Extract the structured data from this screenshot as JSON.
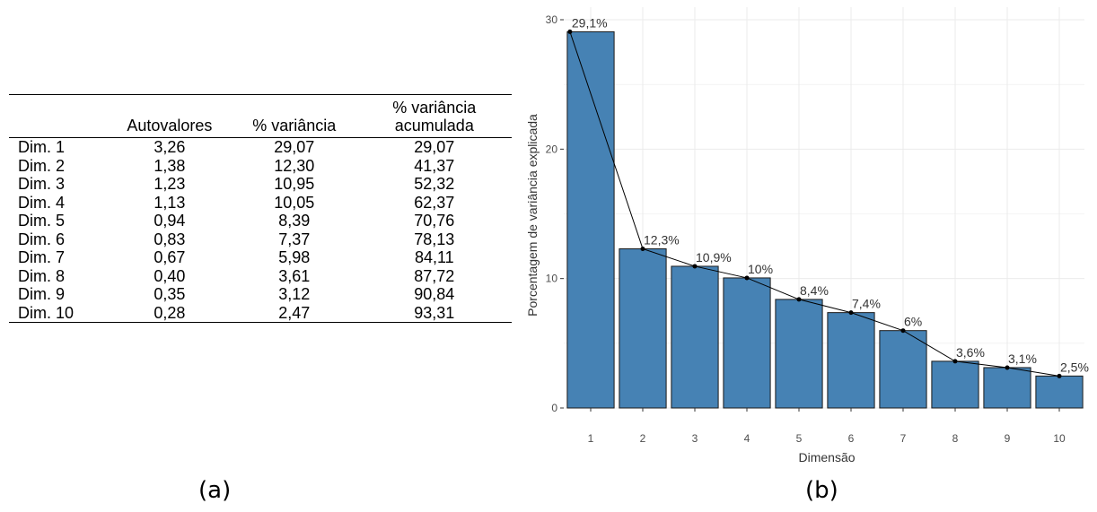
{
  "panel_a": {
    "label": "(a)",
    "table": {
      "headers": [
        "",
        "Autovalores",
        "% variância",
        "% variância acumulada"
      ],
      "header_cum_line1": "% variância",
      "header_cum_line2": "acumulada",
      "rows": [
        [
          "Dim. 1",
          "3,26",
          "29,07",
          "29,07"
        ],
        [
          "Dim. 2",
          "1,38",
          "12,30",
          "41,37"
        ],
        [
          "Dim. 3",
          "1,23",
          "10,95",
          "52,32"
        ],
        [
          "Dim. 4",
          "1,13",
          "10,05",
          "62,37"
        ],
        [
          "Dim. 5",
          "0,94",
          "8,39",
          "70,76"
        ],
        [
          "Dim. 6",
          "0,83",
          "7,37",
          "78,13"
        ],
        [
          "Dim. 7",
          "0,67",
          "5,98",
          "84,11"
        ],
        [
          "Dim. 8",
          "0,40",
          "3,61",
          "87,72"
        ],
        [
          "Dim. 9",
          "0,35",
          "3,12",
          "90,84"
        ],
        [
          "Dim. 10",
          "0,28",
          "2,47",
          "93,31"
        ]
      ]
    }
  },
  "panel_b": {
    "label": "(b)"
  },
  "chart_data": {
    "type": "bar",
    "categories": [
      "1",
      "2",
      "3",
      "4",
      "5",
      "6",
      "7",
      "8",
      "9",
      "10"
    ],
    "values": [
      29.07,
      12.3,
      10.95,
      10.05,
      8.39,
      7.37,
      5.98,
      3.61,
      3.12,
      2.47
    ],
    "data_labels": [
      "29,1%",
      "12,3%",
      "10,9%",
      "10%",
      "8,4%",
      "7,4%",
      "6%",
      "3,6%",
      "3,1%",
      "2,5%"
    ],
    "line_overlay": true,
    "xlabel": "Dimensão",
    "ylabel": "Porcentagem de variância explicada",
    "ylim": [
      0,
      30
    ],
    "yticks": [
      "0",
      "10",
      "20",
      "30"
    ],
    "grid": true,
    "colors": {
      "bar_fill": "#4682b4",
      "bar_stroke": "#1a1a1a",
      "line": "#000000",
      "grid": "#ebebeb"
    }
  }
}
